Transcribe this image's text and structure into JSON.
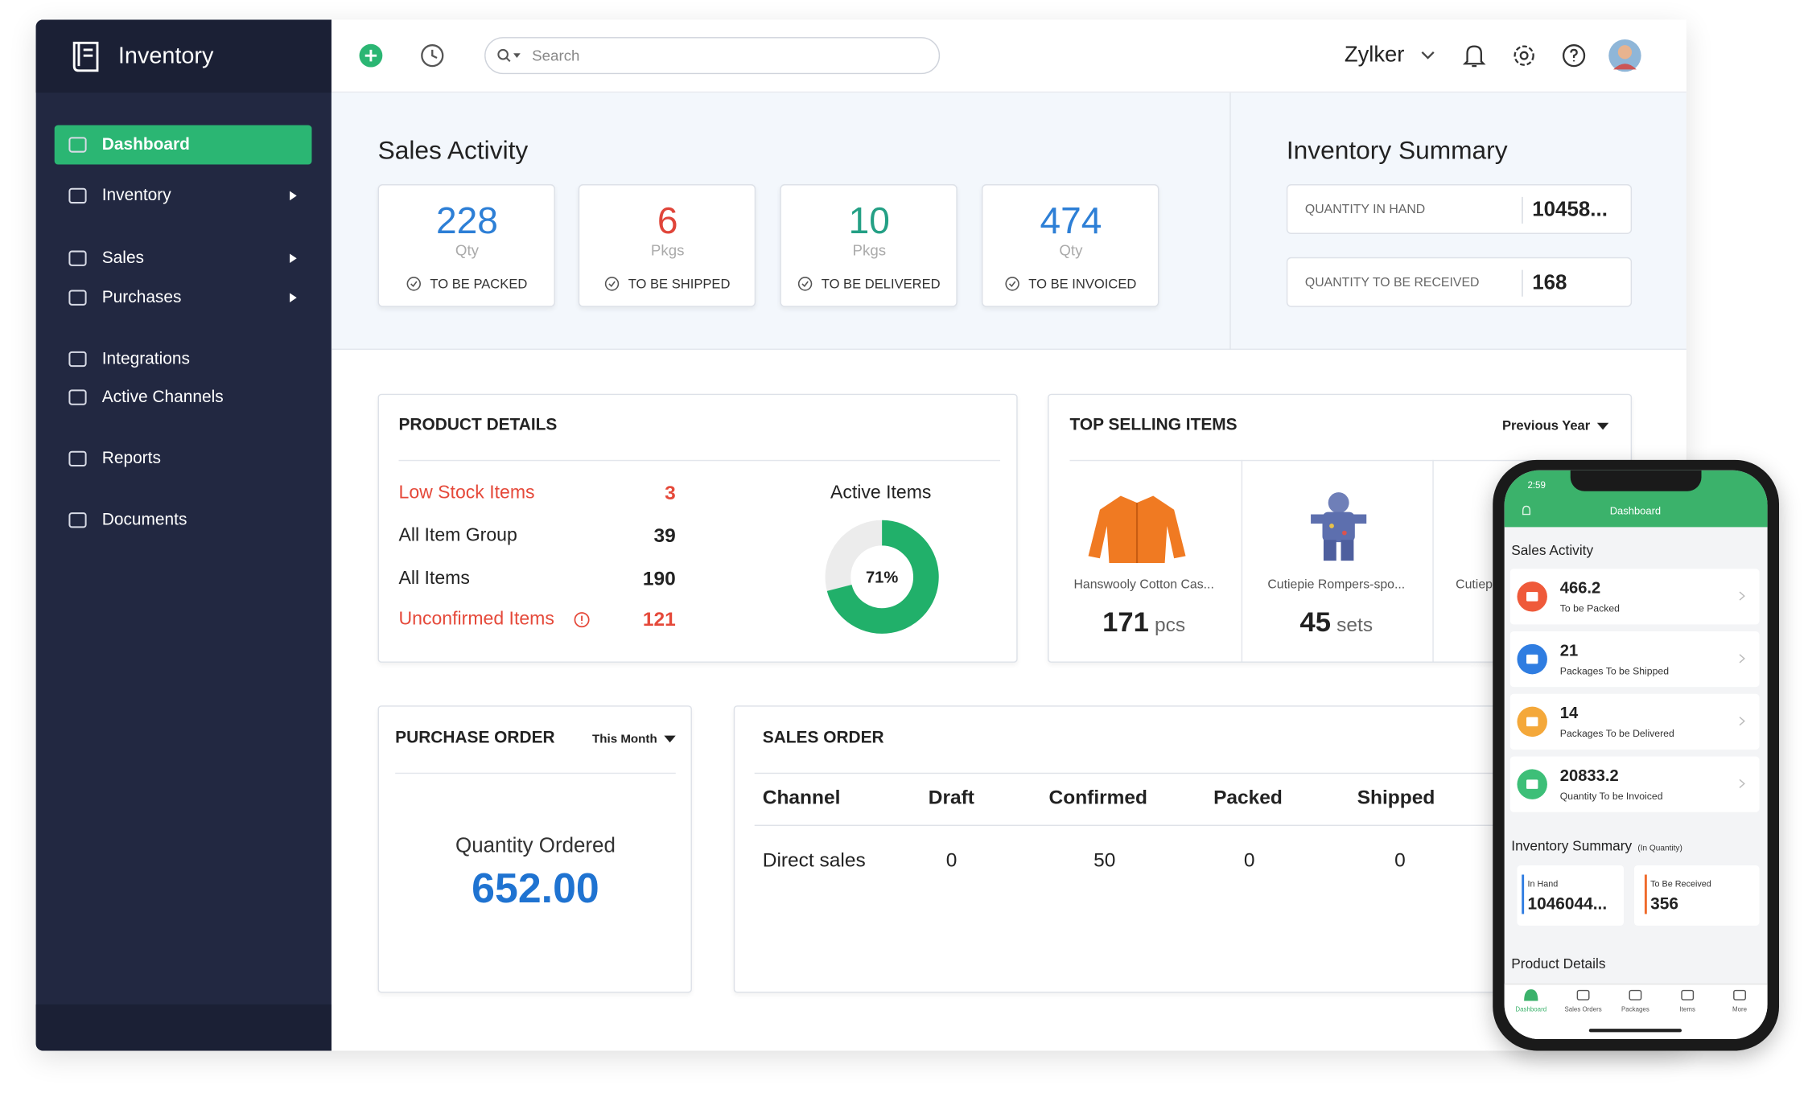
{
  "sidebar": {
    "app_name": "Inventory",
    "items": [
      "Dashboard",
      "Inventory",
      "Sales",
      "Purchases",
      "Integrations",
      "Active Channels",
      "Reports",
      "Documents"
    ]
  },
  "topbar": {
    "search": "Search",
    "organization": "Zylker"
  },
  "sales_activity": {
    "title": "Sales Activity",
    "cards": [
      {
        "value": 228,
        "unit": "Qty",
        "label": "TO BE PACKED"
      },
      {
        "value": 6,
        "unit": "Pkgs",
        "label": "TO BE SHIPPED"
      },
      {
        "value": 10,
        "unit": "Pkgs",
        "label": "TO BE DELIVERED"
      },
      {
        "value": 474,
        "unit": "Qty",
        "label": "TO BE INVOICED"
      }
    ]
  },
  "inventory_summary": {
    "title": "Inventory Summary",
    "rows": [
      {
        "label": "QUANTITY IN HAND",
        "value": "10458..."
      },
      {
        "label": "QUANTITY TO BE RECEIVED",
        "value": 168
      }
    ]
  },
  "product_details": {
    "title": "PRODUCT DETAILS",
    "rows": [
      {
        "label": "Low Stock Items",
        "value": 3
      },
      {
        "label": "All Item Group",
        "value": 39
      },
      {
        "label": "All Items",
        "value": 190
      },
      {
        "label": "Unconfirmed Items",
        "value": 121
      }
    ],
    "active_items": {
      "title": "Active Items",
      "value": 71,
      "label": "71%"
    }
  },
  "top_selling": {
    "title": "TOP SELLING ITEMS",
    "period": "Previous Year",
    "items": [
      {
        "name": "Hanswooly Cotton Cas...",
        "quantity": 171,
        "unit": "pcs"
      },
      {
        "name": "Cutiepie Rompers-spo...",
        "quantity": 45,
        "unit": "sets"
      },
      {
        "name": "Cutiep"
      }
    ]
  },
  "purchase_order": {
    "title": "PURCHASE ORDER",
    "period": "This Month",
    "metric": "Quantity Ordered",
    "value": "652.00"
  },
  "sales_order": {
    "title": "SALES ORDER",
    "columns": [
      "Channel",
      "Draft",
      "Confirmed",
      "Packed",
      "Shipped"
    ],
    "rows": [
      [
        "Direct sales",
        0,
        50,
        0,
        0
      ]
    ]
  },
  "mobile": {
    "time": "2:59",
    "header": "Dashboard",
    "sales_activity": "Sales Activity",
    "cards": [
      {
        "value": 466.2,
        "label": "To be Packed"
      },
      {
        "value": 21,
        "label": "Packages To be Shipped"
      },
      {
        "value": 14,
        "label": "Packages To be Delivered"
      },
      {
        "value": 20833.2,
        "label": "Quantity To be Invoiced"
      }
    ],
    "inventory_summary": "Inventory Summary",
    "inventory_summary_note": "(In Quantity)",
    "in_hand": {
      "label": "In Hand",
      "value": "1046044..."
    },
    "to_be_received": {
      "label": "To Be Received",
      "value": 356
    },
    "product_details": "Product Details",
    "tabs": [
      "Dashboard",
      "Sales Orders",
      "Packages",
      "Items",
      "More"
    ]
  }
}
